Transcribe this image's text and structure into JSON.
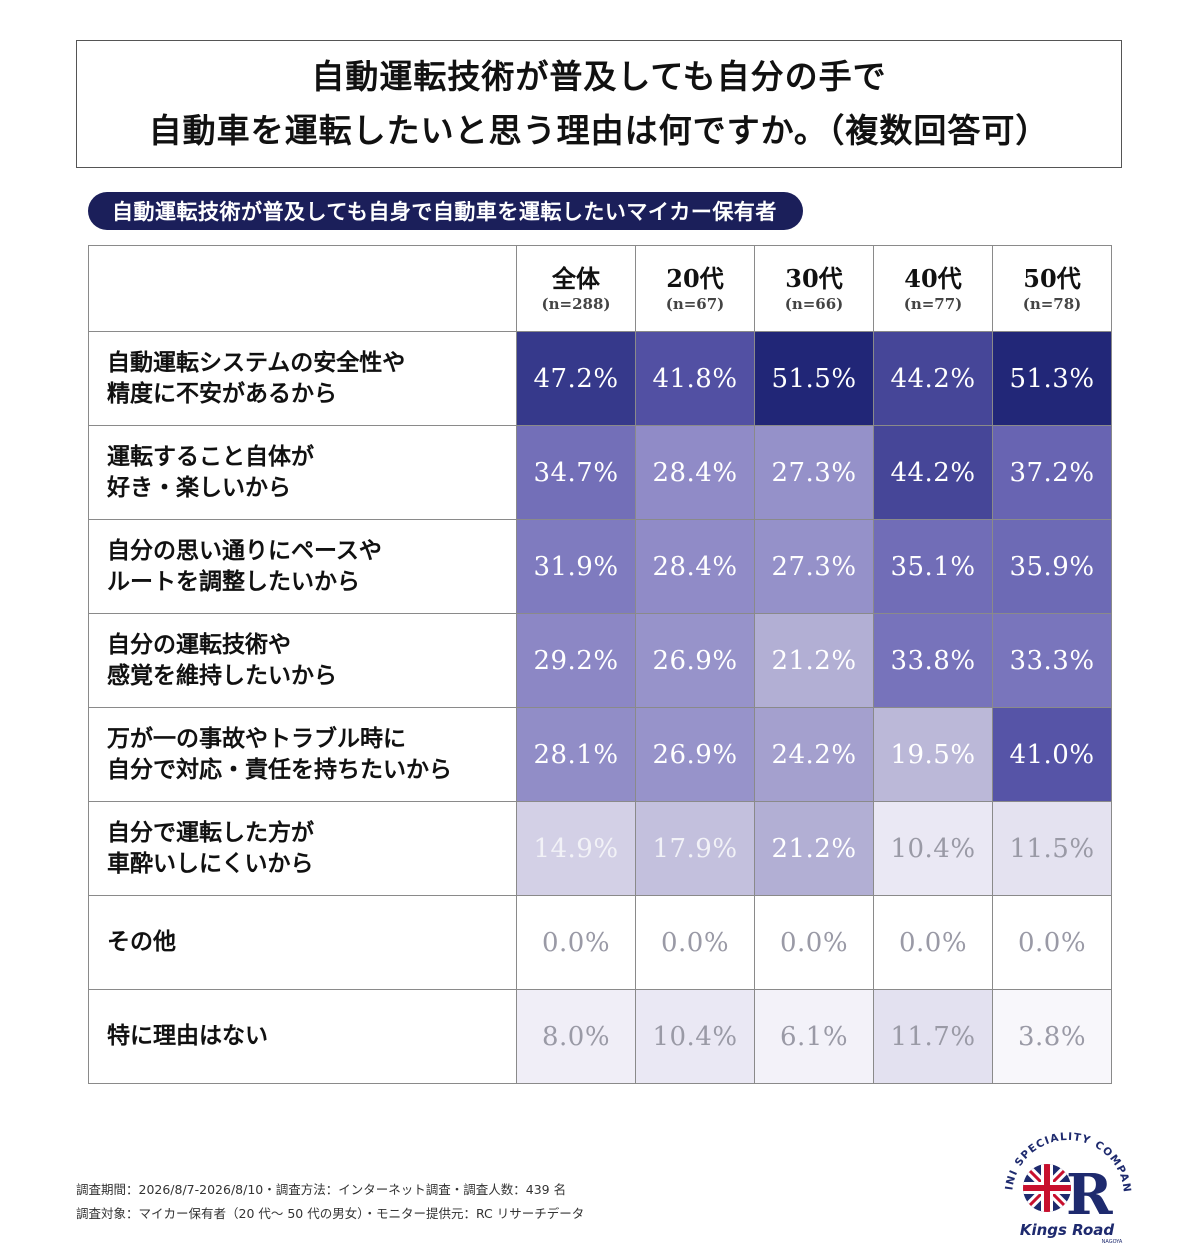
{
  "title": {
    "line1": "自動運転技術が普及しても自分の手で",
    "line2": "自動車を運転したいと思う理由は何ですか。（複数回答可）"
  },
  "subtitle": "自動運転技術が普及しても自身で自動車を運転したいマイカー保有者",
  "chart_data": {
    "type": "heatmap",
    "columns": [
      {
        "label": "全体",
        "n": "(n=288)"
      },
      {
        "label": "20代",
        "n": "(n=67)"
      },
      {
        "label": "30代",
        "n": "(n=66)"
      },
      {
        "label": "40代",
        "n": "(n=77)"
      },
      {
        "label": "50代",
        "n": "(n=78)"
      }
    ],
    "rows": [
      {
        "label": [
          "自動運転システムの安全性や",
          "精度に不安があるから"
        ],
        "values": [
          47.2,
          41.8,
          51.5,
          44.2,
          51.3
        ]
      },
      {
        "label": [
          "運転すること自体が",
          "好き・楽しいから"
        ],
        "values": [
          34.7,
          28.4,
          27.3,
          44.2,
          37.2
        ]
      },
      {
        "label": [
          "自分の思い通りにペースや",
          "ルートを調整したいから"
        ],
        "values": [
          31.9,
          28.4,
          27.3,
          35.1,
          35.9
        ]
      },
      {
        "label": [
          "自分の運転技術や",
          "感覚を維持したいから"
        ],
        "values": [
          29.2,
          26.9,
          21.2,
          33.8,
          33.3
        ]
      },
      {
        "label": [
          "万が一の事故やトラブル時に",
          "自分で対応・責任を持ちたいから"
        ],
        "values": [
          28.1,
          26.9,
          24.2,
          19.5,
          41.0
        ]
      },
      {
        "label": [
          "自分で運転した方が",
          "車酔いしにくいから"
        ],
        "values": [
          14.9,
          17.9,
          21.2,
          10.4,
          11.5
        ]
      },
      {
        "label": [
          "その他"
        ],
        "values": [
          0.0,
          0.0,
          0.0,
          0.0,
          0.0
        ]
      },
      {
        "label": [
          "特に理由はない"
        ],
        "values": [
          8.0,
          10.4,
          6.1,
          11.7,
          3.8
        ]
      }
    ],
    "unit": "%",
    "colors": {
      "high": "#1e2475",
      "low": "#ffffff",
      "text_light": "#ffffff",
      "text_dark": "#9a9aa6"
    }
  },
  "footer": {
    "line1": "調査期間：2026/8/7-2026/8/10・調査方法：インターネット調査・調査人数：439 名",
    "line2": "調査対象：マイカー保有者（20 代～ 50 代の男女）・モニター提供元：RC リサーチデータ"
  },
  "logo": {
    "arc_text": "MINI SPECIALITY COMPANY",
    "brand": "Kings Road",
    "sub": "NAGOYA"
  }
}
